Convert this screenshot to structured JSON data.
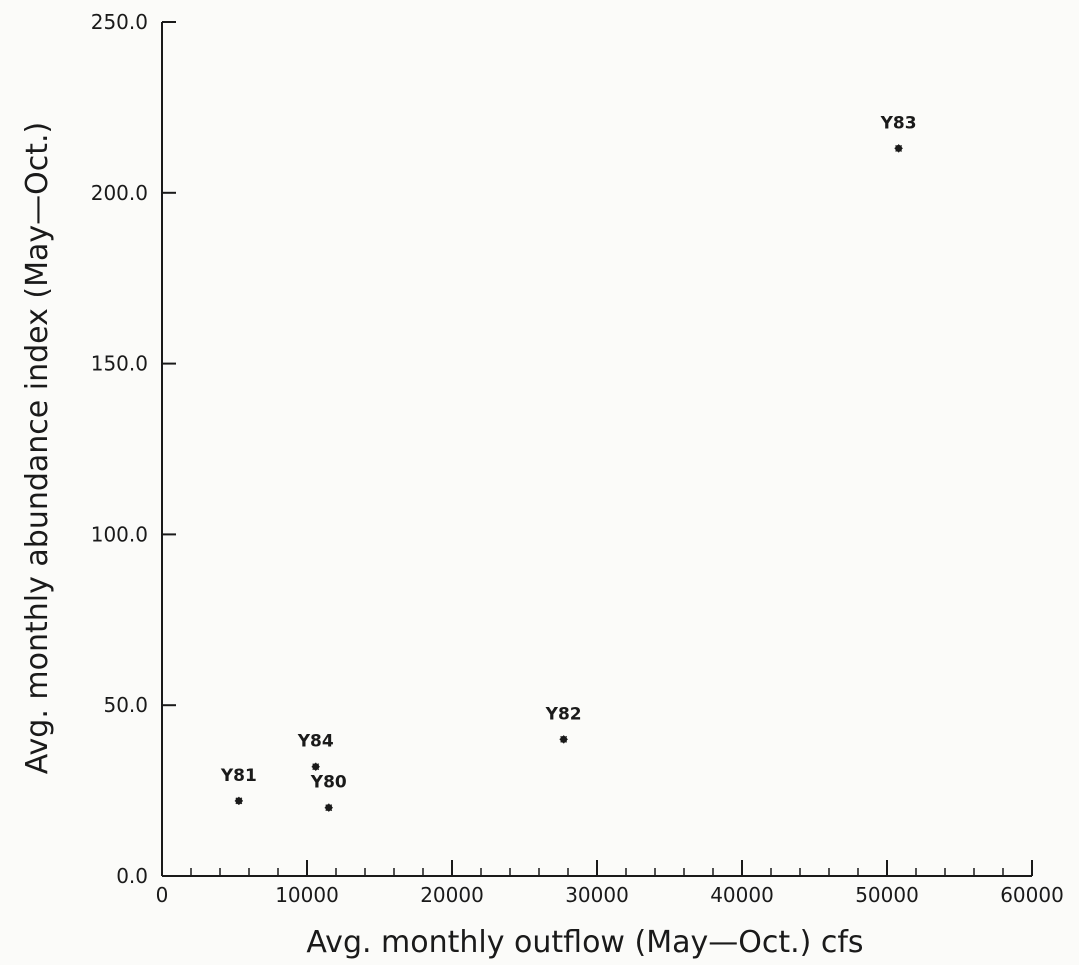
{
  "chart_data": {
    "type": "scatter",
    "xlabel": "Avg. monthly outflow (May—Oct.) cfs",
    "ylabel": "Avg. monthly abundance index (May—Oct.)",
    "xlim": [
      0,
      60000
    ],
    "ylim": [
      0,
      250
    ],
    "x_ticks": [
      "0",
      "10000",
      "20000",
      "30000",
      "40000",
      "50000",
      "60000"
    ],
    "y_ticks": [
      "0.0",
      "50.0",
      "100.0",
      "150.0",
      "200.0",
      "250.0"
    ],
    "grid": false,
    "points": [
      {
        "label": "Y81",
        "x": 5300,
        "y": 22
      },
      {
        "label": "Y84",
        "x": 10600,
        "y": 32
      },
      {
        "label": "Y80",
        "x": 11500,
        "y": 20
      },
      {
        "label": "Y82",
        "x": 27700,
        "y": 40
      },
      {
        "label": "Y83",
        "x": 50800,
        "y": 213
      }
    ]
  }
}
